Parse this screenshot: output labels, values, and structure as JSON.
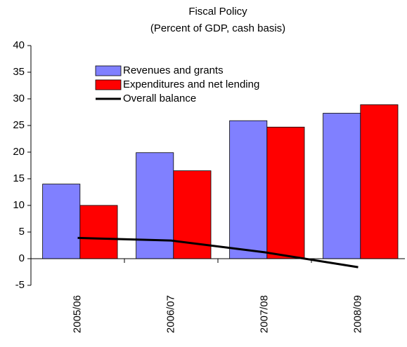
{
  "chart_data": {
    "type": "bar",
    "title": "Fiscal Policy",
    "subtitle": "(Percent of GDP, cash basis)",
    "categories": [
      "2005/06",
      "2006/07",
      "2007/08",
      "2008/09"
    ],
    "series": [
      {
        "name": "Revenues and grants",
        "color": "#8080ff",
        "values": [
          14.0,
          19.9,
          25.9,
          27.3
        ]
      },
      {
        "name": "Expenditures and net lending",
        "color": "#ff0000",
        "values": [
          10.0,
          16.5,
          24.7,
          28.9
        ]
      },
      {
        "name": "Overall balance",
        "color": "#000000",
        "type": "line",
        "values": [
          3.9,
          3.4,
          1.2,
          -1.6
        ]
      }
    ],
    "ylim": [
      -5,
      40
    ],
    "yticks": [
      -5,
      0,
      5,
      10,
      15,
      20,
      25,
      30,
      35,
      40
    ],
    "grid": false
  }
}
